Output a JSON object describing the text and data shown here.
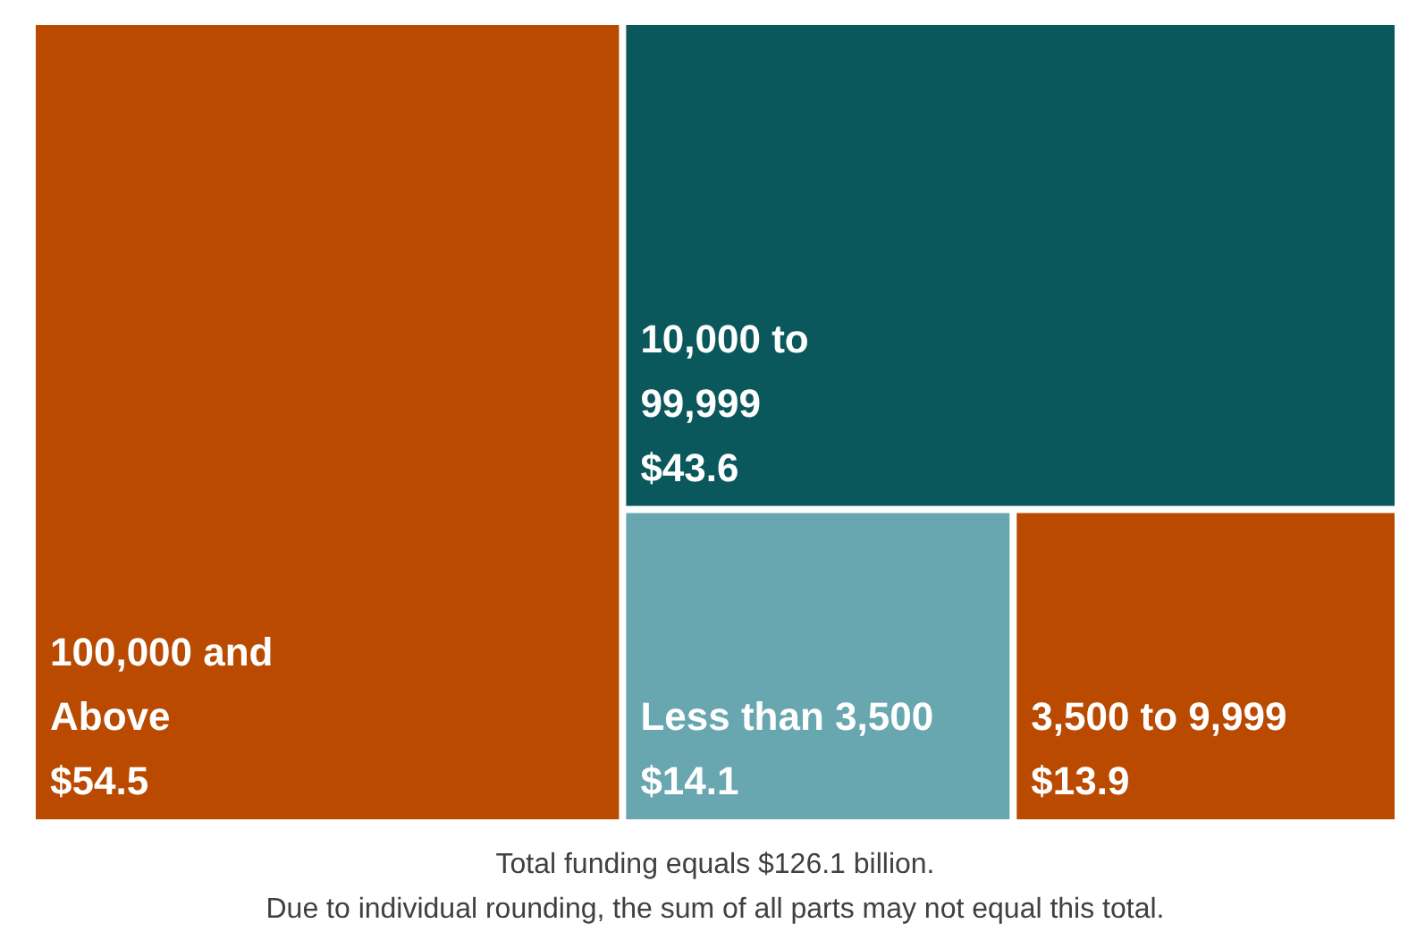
{
  "chart_data": {
    "type": "other",
    "categories": [
      "100,000 and Above",
      "10,000 to 99,999",
      "Less than 3,500",
      "3,500 to 9,999"
    ],
    "values": [
      54.5,
      43.6,
      14.1,
      13.9
    ],
    "value_labels": [
      "$54.5",
      "$43.6",
      "$14.1",
      "$13.9"
    ],
    "colors": [
      "#b94a00",
      "#0a585c",
      "#68a6b0",
      "#b94a00"
    ],
    "annotations": [
      "Total funding equals $126.1 billion.",
      "Due to individual rounding, the sum of all parts may not equal this total."
    ]
  }
}
